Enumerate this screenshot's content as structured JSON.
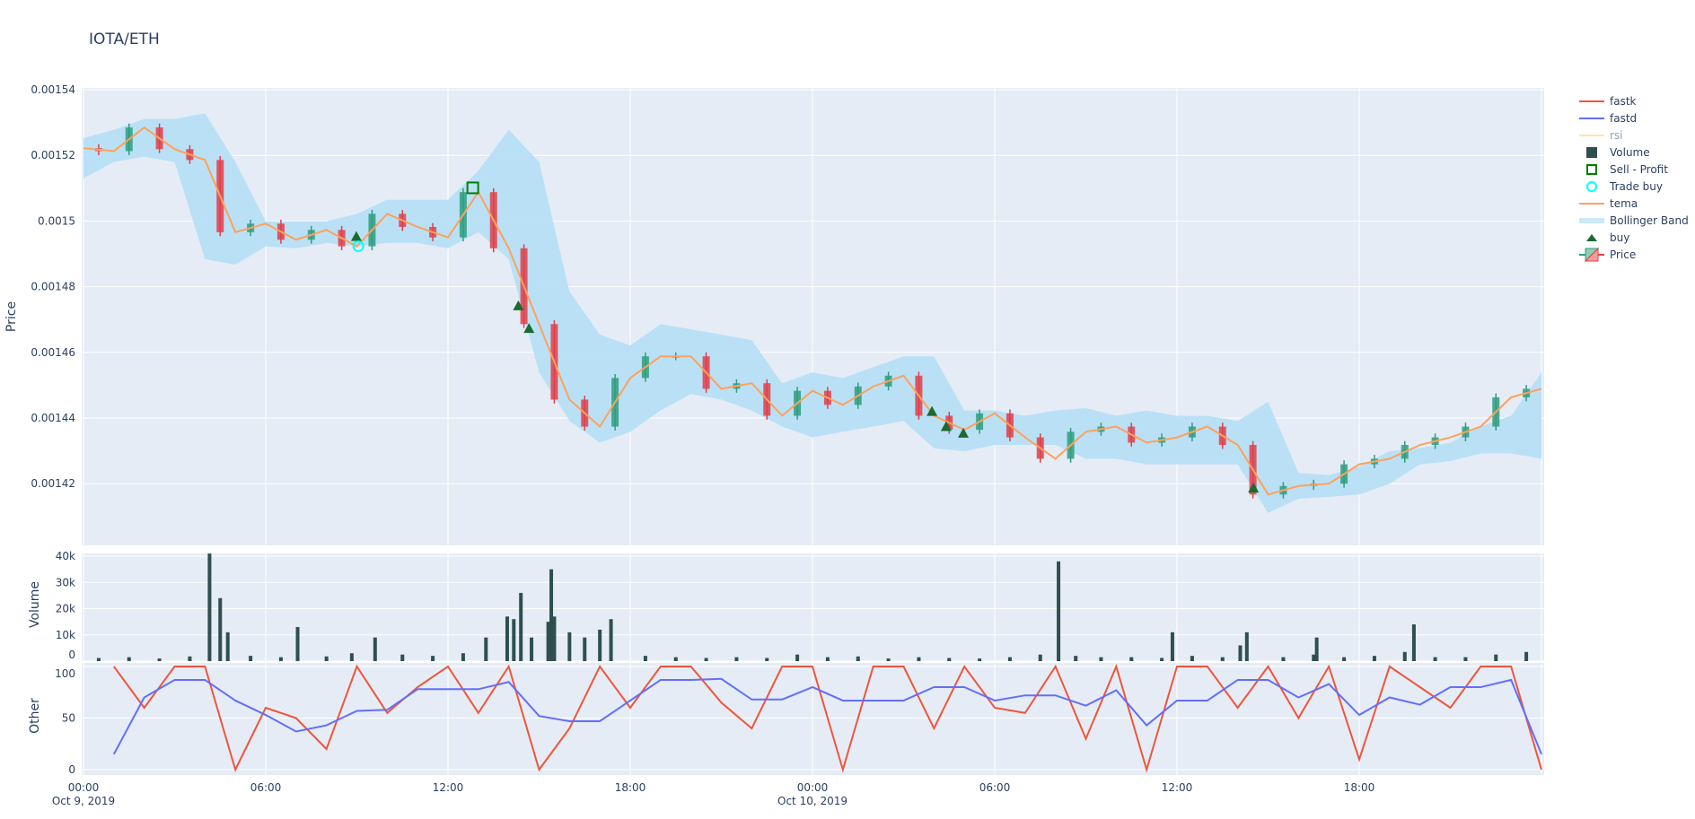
{
  "title": "IOTA/ETH",
  "colors": {
    "background": "#E5ECF6",
    "grid": "#FFFFFF",
    "text": "#2a3f5f",
    "increasing": "#2f9e7f",
    "decreasing": "#e0404a",
    "bollinger_fill": "#b7dff5",
    "tema": "#FFA15A",
    "fastk": "#EF553B",
    "fastd": "#636EFA",
    "rsi": "#FECB52",
    "volume": "#2F4F4F",
    "buy": "#1a6b2f",
    "sell_profit": "#008000",
    "trade_buy": "#00FFFF"
  },
  "legend": [
    {
      "label": "fastk",
      "symbol": "line",
      "color": "#EF553B"
    },
    {
      "label": "fastd",
      "symbol": "line",
      "color": "#636EFA"
    },
    {
      "label": "rsi",
      "symbol": "line",
      "color": "#FECB52",
      "hidden": true
    },
    {
      "label": "Volume",
      "symbol": "square-filled",
      "color": "#2F4F4F"
    },
    {
      "label": "Sell - Profit",
      "symbol": "square-open",
      "color": "#008000"
    },
    {
      "label": "Trade buy",
      "symbol": "circle-open",
      "color": "#00FFFF"
    },
    {
      "label": "tema",
      "symbol": "line",
      "color": "#FFA15A"
    },
    {
      "label": "Bollinger Band",
      "symbol": "band",
      "color": "#cce9f8"
    },
    {
      "label": "buy",
      "symbol": "triangle-up",
      "color": "#1a6b2f"
    },
    {
      "label": "Price",
      "symbol": "candlestick",
      "color": "#2f9e7f"
    }
  ],
  "chart_data": [
    {
      "type": "candlestick",
      "ylabel": "Price",
      "ylim": [
        0.001401,
        0.001541
      ],
      "yticks": [
        "0.00142",
        "0.00144",
        "0.00146",
        "0.00148",
        "0.0015",
        "0.00152",
        "0.00154"
      ],
      "grid": true,
      "x": [
        "2019-10-09 00:00",
        "2019-10-09 01:00",
        "2019-10-09 02:00",
        "2019-10-09 03:00",
        "2019-10-09 04:00",
        "2019-10-09 05:00",
        "2019-10-09 06:00",
        "2019-10-09 07:00",
        "2019-10-09 08:00",
        "2019-10-09 09:00",
        "2019-10-09 10:00",
        "2019-10-09 11:00",
        "2019-10-09 12:00",
        "2019-10-09 13:00",
        "2019-10-09 14:00",
        "2019-10-09 15:00",
        "2019-10-09 16:00",
        "2019-10-09 17:00",
        "2019-10-09 18:00",
        "2019-10-09 19:00",
        "2019-10-09 20:00",
        "2019-10-09 21:00",
        "2019-10-09 22:00",
        "2019-10-09 23:00",
        "2019-10-10 00:00",
        "2019-10-10 01:00",
        "2019-10-10 02:00",
        "2019-10-10 03:00",
        "2019-10-10 04:00",
        "2019-10-10 05:00",
        "2019-10-10 06:00",
        "2019-10-10 07:00",
        "2019-10-10 08:00",
        "2019-10-10 09:00",
        "2019-10-10 10:00",
        "2019-10-10 11:00",
        "2019-10-10 12:00",
        "2019-10-10 13:00",
        "2019-10-10 14:00",
        "2019-10-10 15:00",
        "2019-10-10 16:00",
        "2019-10-10 17:00",
        "2019-10-10 18:00",
        "2019-10-10 19:00",
        "2019-10-10 20:00",
        "2019-10-10 21:00",
        "2019-10-10 22:00",
        "2019-10-10 23:00",
        "2019-10-11 00:00"
      ],
      "series": [
        {
          "name": "tema",
          "values": [
            0.0015222,
            0.0015213,
            0.0015285,
            0.0015219,
            0.0015186,
            0.0014966,
            0.0014992,
            0.0014943,
            0.0014973,
            0.0014923,
            0.0015022,
            0.0014982,
            0.001495,
            0.0015088,
            0.0014917,
            0.0014686,
            0.0014456,
            0.0014374,
            0.0014522,
            0.0014588,
            0.0014588,
            0.0014489,
            0.0014506,
            0.0014407,
            0.0014483,
            0.001444,
            0.0014496,
            0.0014529,
            0.0014407,
            0.0014364,
            0.0014414,
            0.0014341,
            0.0014276,
            0.0014358,
            0.0014374,
            0.0014325,
            0.0014341,
            0.0014374,
            0.0014318,
            0.0014167,
            0.0014193,
            0.00142,
            0.0014259,
            0.0014276,
            0.0014318,
            0.0014341,
            0.0014374,
            0.0014463,
            0.0014489
          ]
        },
        {
          "name": "Bollinger Band",
          "upper": [
            0.0015252,
            0.0015278,
            0.0015311,
            0.0015311,
            0.0015328,
            0.001518,
            0.0014999,
            0.0014999,
            0.0014999,
            0.0015022,
            0.0015065,
            0.0015065,
            0.0015065,
            0.0015153,
            0.0015278,
            0.001518,
            0.0014785,
            0.0014654,
            0.0014621,
            0.0014686,
            0.001467,
            0.0014654,
            0.0014637,
            0.0014506,
            0.0014539,
            0.0014522,
            0.0014555,
            0.0014588,
            0.0014588,
            0.0014423,
            0.0014423,
            0.0014407,
            0.0014423,
            0.001443,
            0.0014407,
            0.0014423,
            0.0014407,
            0.0014407,
            0.0014391,
            0.001445,
            0.0014233,
            0.0014226,
            0.0014252,
            0.0014299,
            0.0014308,
            0.0014325,
            0.0014374,
            0.0014407,
            0.0014539
          ],
          "lower": [
            0.001513,
            0.001518,
            0.0015196,
            0.001518,
            0.0014884,
            0.0014867,
            0.0014923,
            0.0014917,
            0.0014933,
            0.0014923,
            0.0014933,
            0.0014933,
            0.0014917,
            0.0014966,
            0.0014884,
            0.0014539,
            0.0014391,
            0.0014325,
            0.0014358,
            0.0014423,
            0.0014473,
            0.0014456,
            0.0014423,
            0.0014374,
            0.0014341,
            0.0014358,
            0.0014374,
            0.0014391,
            0.0014308,
            0.0014299,
            0.0014318,
            0.0014318,
            0.0014318,
            0.0014276,
            0.0014276,
            0.0014259,
            0.0014259,
            0.0014259,
            0.0014259,
            0.0014111,
            0.0014154,
            0.001416,
            0.0014167,
            0.00142,
            0.0014259,
            0.0014269,
            0.0014292,
            0.0014292,
            0.0014276
          ]
        }
      ],
      "markers": {
        "buy": [
          {
            "x": "2019-10-09 08:59",
            "y": 0.0014953
          },
          {
            "x": "2019-10-09 14:19",
            "y": 0.0014742
          },
          {
            "x": "2019-10-09 14:40",
            "y": 0.0014673
          },
          {
            "x": "2019-10-10 03:56",
            "y": 0.001442
          },
          {
            "x": "2019-10-10 04:24",
            "y": 0.0014374
          },
          {
            "x": "2019-10-10 04:58",
            "y": 0.0014354
          },
          {
            "x": "2019-10-10 14:31",
            "y": 0.0014187
          }
        ],
        "sell_profit": [
          {
            "x": "2019-10-09 12:49",
            "y": 0.0015101
          }
        ],
        "trade_buy": [
          {
            "x": "2019-10-09 09:03",
            "y": 0.0014923
          }
        ]
      }
    },
    {
      "type": "bar",
      "ylabel": "Volume",
      "ylim": [
        0,
        41000
      ],
      "yticks": [
        "0",
        "10k",
        "20k",
        "30k",
        "40k"
      ],
      "name": "Volume",
      "points": [
        {
          "x": "2019-10-09 00:30",
          "y": 1200
        },
        {
          "x": "2019-10-09 01:30",
          "y": 1500
        },
        {
          "x": "2019-10-09 02:30",
          "y": 1000
        },
        {
          "x": "2019-10-09 03:30",
          "y": 1800
        },
        {
          "x": "2019-10-09 04:09",
          "y": 41000
        },
        {
          "x": "2019-10-09 04:30",
          "y": 24000
        },
        {
          "x": "2019-10-09 04:45",
          "y": 11000
        },
        {
          "x": "2019-10-09 05:30",
          "y": 2000
        },
        {
          "x": "2019-10-09 06:30",
          "y": 1500
        },
        {
          "x": "2019-10-09 07:03",
          "y": 13000
        },
        {
          "x": "2019-10-09 08:00",
          "y": 1800
        },
        {
          "x": "2019-10-09 08:50",
          "y": 3000
        },
        {
          "x": "2019-10-09 09:36",
          "y": 9000
        },
        {
          "x": "2019-10-09 10:30",
          "y": 2500
        },
        {
          "x": "2019-10-09 11:30",
          "y": 2000
        },
        {
          "x": "2019-10-09 12:30",
          "y": 3000
        },
        {
          "x": "2019-10-09 13:15",
          "y": 9000
        },
        {
          "x": "2019-10-09 13:57",
          "y": 17000
        },
        {
          "x": "2019-10-09 14:10",
          "y": 16000
        },
        {
          "x": "2019-10-09 14:24",
          "y": 26000
        },
        {
          "x": "2019-10-09 14:45",
          "y": 9000
        },
        {
          "x": "2019-10-09 15:18",
          "y": 15000
        },
        {
          "x": "2019-10-09 15:24",
          "y": 35000
        },
        {
          "x": "2019-10-09 15:30",
          "y": 17000
        },
        {
          "x": "2019-10-09 16:00",
          "y": 11000
        },
        {
          "x": "2019-10-09 16:30",
          "y": 9000
        },
        {
          "x": "2019-10-09 17:00",
          "y": 12000
        },
        {
          "x": "2019-10-09 17:22",
          "y": 16000
        },
        {
          "x": "2019-10-09 18:30",
          "y": 2000
        },
        {
          "x": "2019-10-09 19:30",
          "y": 1500
        },
        {
          "x": "2019-10-09 20:30",
          "y": 1200
        },
        {
          "x": "2019-10-09 21:30",
          "y": 1500
        },
        {
          "x": "2019-10-09 22:30",
          "y": 1200
        },
        {
          "x": "2019-10-09 23:30",
          "y": 2500
        },
        {
          "x": "2019-10-10 00:30",
          "y": 1500
        },
        {
          "x": "2019-10-10 01:30",
          "y": 1800
        },
        {
          "x": "2019-10-10 02:30",
          "y": 1000
        },
        {
          "x": "2019-10-10 03:30",
          "y": 1500
        },
        {
          "x": "2019-10-10 04:30",
          "y": 1200
        },
        {
          "x": "2019-10-10 05:30",
          "y": 1000
        },
        {
          "x": "2019-10-10 06:30",
          "y": 1500
        },
        {
          "x": "2019-10-10 07:30",
          "y": 2500
        },
        {
          "x": "2019-10-10 08:06",
          "y": 38000
        },
        {
          "x": "2019-10-10 08:40",
          "y": 2000
        },
        {
          "x": "2019-10-10 09:30",
          "y": 1500
        },
        {
          "x": "2019-10-10 10:30",
          "y": 1500
        },
        {
          "x": "2019-10-10 11:30",
          "y": 1200
        },
        {
          "x": "2019-10-10 11:51",
          "y": 11000
        },
        {
          "x": "2019-10-10 12:30",
          "y": 2000
        },
        {
          "x": "2019-10-10 13:30",
          "y": 1500
        },
        {
          "x": "2019-10-10 14:18",
          "y": 11000
        },
        {
          "x": "2019-10-10 14:05",
          "y": 6000
        },
        {
          "x": "2019-10-10 15:30",
          "y": 1500
        },
        {
          "x": "2019-10-10 16:30",
          "y": 2500
        },
        {
          "x": "2019-10-10 16:36",
          "y": 9000
        },
        {
          "x": "2019-10-10 17:30",
          "y": 1500
        },
        {
          "x": "2019-10-10 18:30",
          "y": 2000
        },
        {
          "x": "2019-10-10 19:30",
          "y": 3500
        },
        {
          "x": "2019-10-10 19:48",
          "y": 14000
        },
        {
          "x": "2019-10-10 20:30",
          "y": 1500
        },
        {
          "x": "2019-10-10 21:30",
          "y": 1500
        },
        {
          "x": "2019-10-10 22:30",
          "y": 2500
        },
        {
          "x": "2019-10-10 23:30",
          "y": 3500
        }
      ]
    },
    {
      "type": "line",
      "ylabel": "Other",
      "ylim": [
        -4,
        100
      ],
      "yticks": [
        "0",
        "50",
        "100"
      ],
      "xticks": [
        "00:00",
        "06:00",
        "12:00",
        "18:00",
        "00:00",
        "06:00",
        "12:00",
        "18:00"
      ],
      "xtick_dates": [
        "Oct 9, 2019",
        "Oct 10, 2019"
      ],
      "series": [
        {
          "name": "fastk",
          "values": [
            null,
            100,
            60,
            100,
            100,
            0,
            60,
            50,
            20,
            100,
            55,
            80,
            100,
            55,
            100,
            0,
            40,
            100,
            60,
            100,
            100,
            65,
            40,
            100,
            100,
            0,
            100,
            100,
            40,
            100,
            60,
            55,
            100,
            30,
            100,
            0,
            100,
            100,
            60,
            100,
            50,
            100,
            10,
            100,
            80,
            60,
            100,
            100,
            0
          ]
        },
        {
          "name": "fastd",
          "values": [
            null,
            15,
            70,
            87,
            87,
            67,
            53,
            37,
            43,
            57,
            58,
            78,
            78,
            78,
            85,
            52,
            47,
            47,
            67,
            87,
            87,
            88,
            68,
            68,
            80,
            67,
            67,
            67,
            80,
            80,
            67,
            72,
            72,
            62,
            77,
            43,
            67,
            67,
            87,
            87,
            70,
            83,
            53,
            70,
            63,
            80,
            80,
            87,
            15
          ]
        }
      ]
    }
  ]
}
